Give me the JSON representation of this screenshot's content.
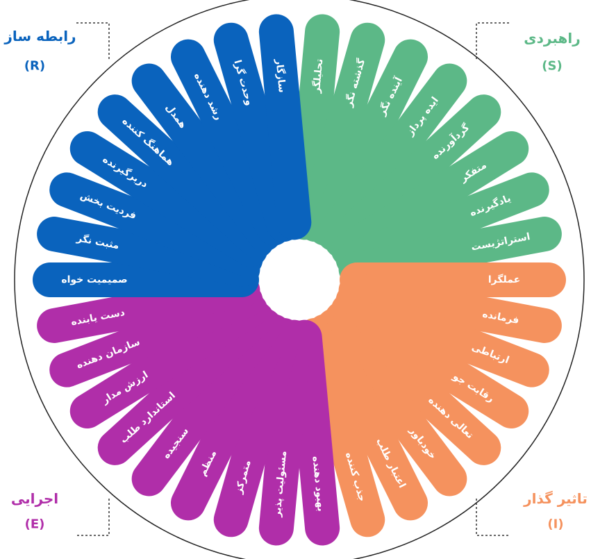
{
  "groups": [
    {
      "title": "راهبردی",
      "code": "(S)",
      "color": "#5cb887",
      "items": [
        "تحلیلگر",
        "گذشته نگر",
        "آینده نگر",
        "ایده پرداز",
        "گردآورنده",
        "متفکر",
        "یادگیرنده",
        "استراتژیست"
      ]
    },
    {
      "title": "تاثیر گذار",
      "code": "(I)",
      "color": "#f5925e",
      "items": [
        "عملگرا",
        "فرمانده",
        "ارتباطی",
        "رقابت جو",
        "تعالی دهنده",
        "خودباور",
        "اعتبار طلب",
        "جذب کننده"
      ]
    },
    {
      "title": "اجرایی",
      "code": "(E)",
      "color": "#b02ea9",
      "items": [
        "بهبود دهنده",
        "مسئولیت پذیر",
        "متمرکز",
        "منظم",
        "سنجیده",
        "استاندارد طلب",
        "ارزش مدار",
        "سازمان دهنده",
        "دست یابنده"
      ]
    },
    {
      "title": "رابطه ساز",
      "code": "(R)",
      "color": "#0a63bd",
      "items": [
        "صمیمیت خواه",
        "مثبت نگر",
        "فردیت بخش",
        "دربرگیرنده",
        "هماهنگ کننده",
        "همدل",
        "رشد دهنده",
        "وحدت گرا",
        "سازگار"
      ]
    }
  ]
}
